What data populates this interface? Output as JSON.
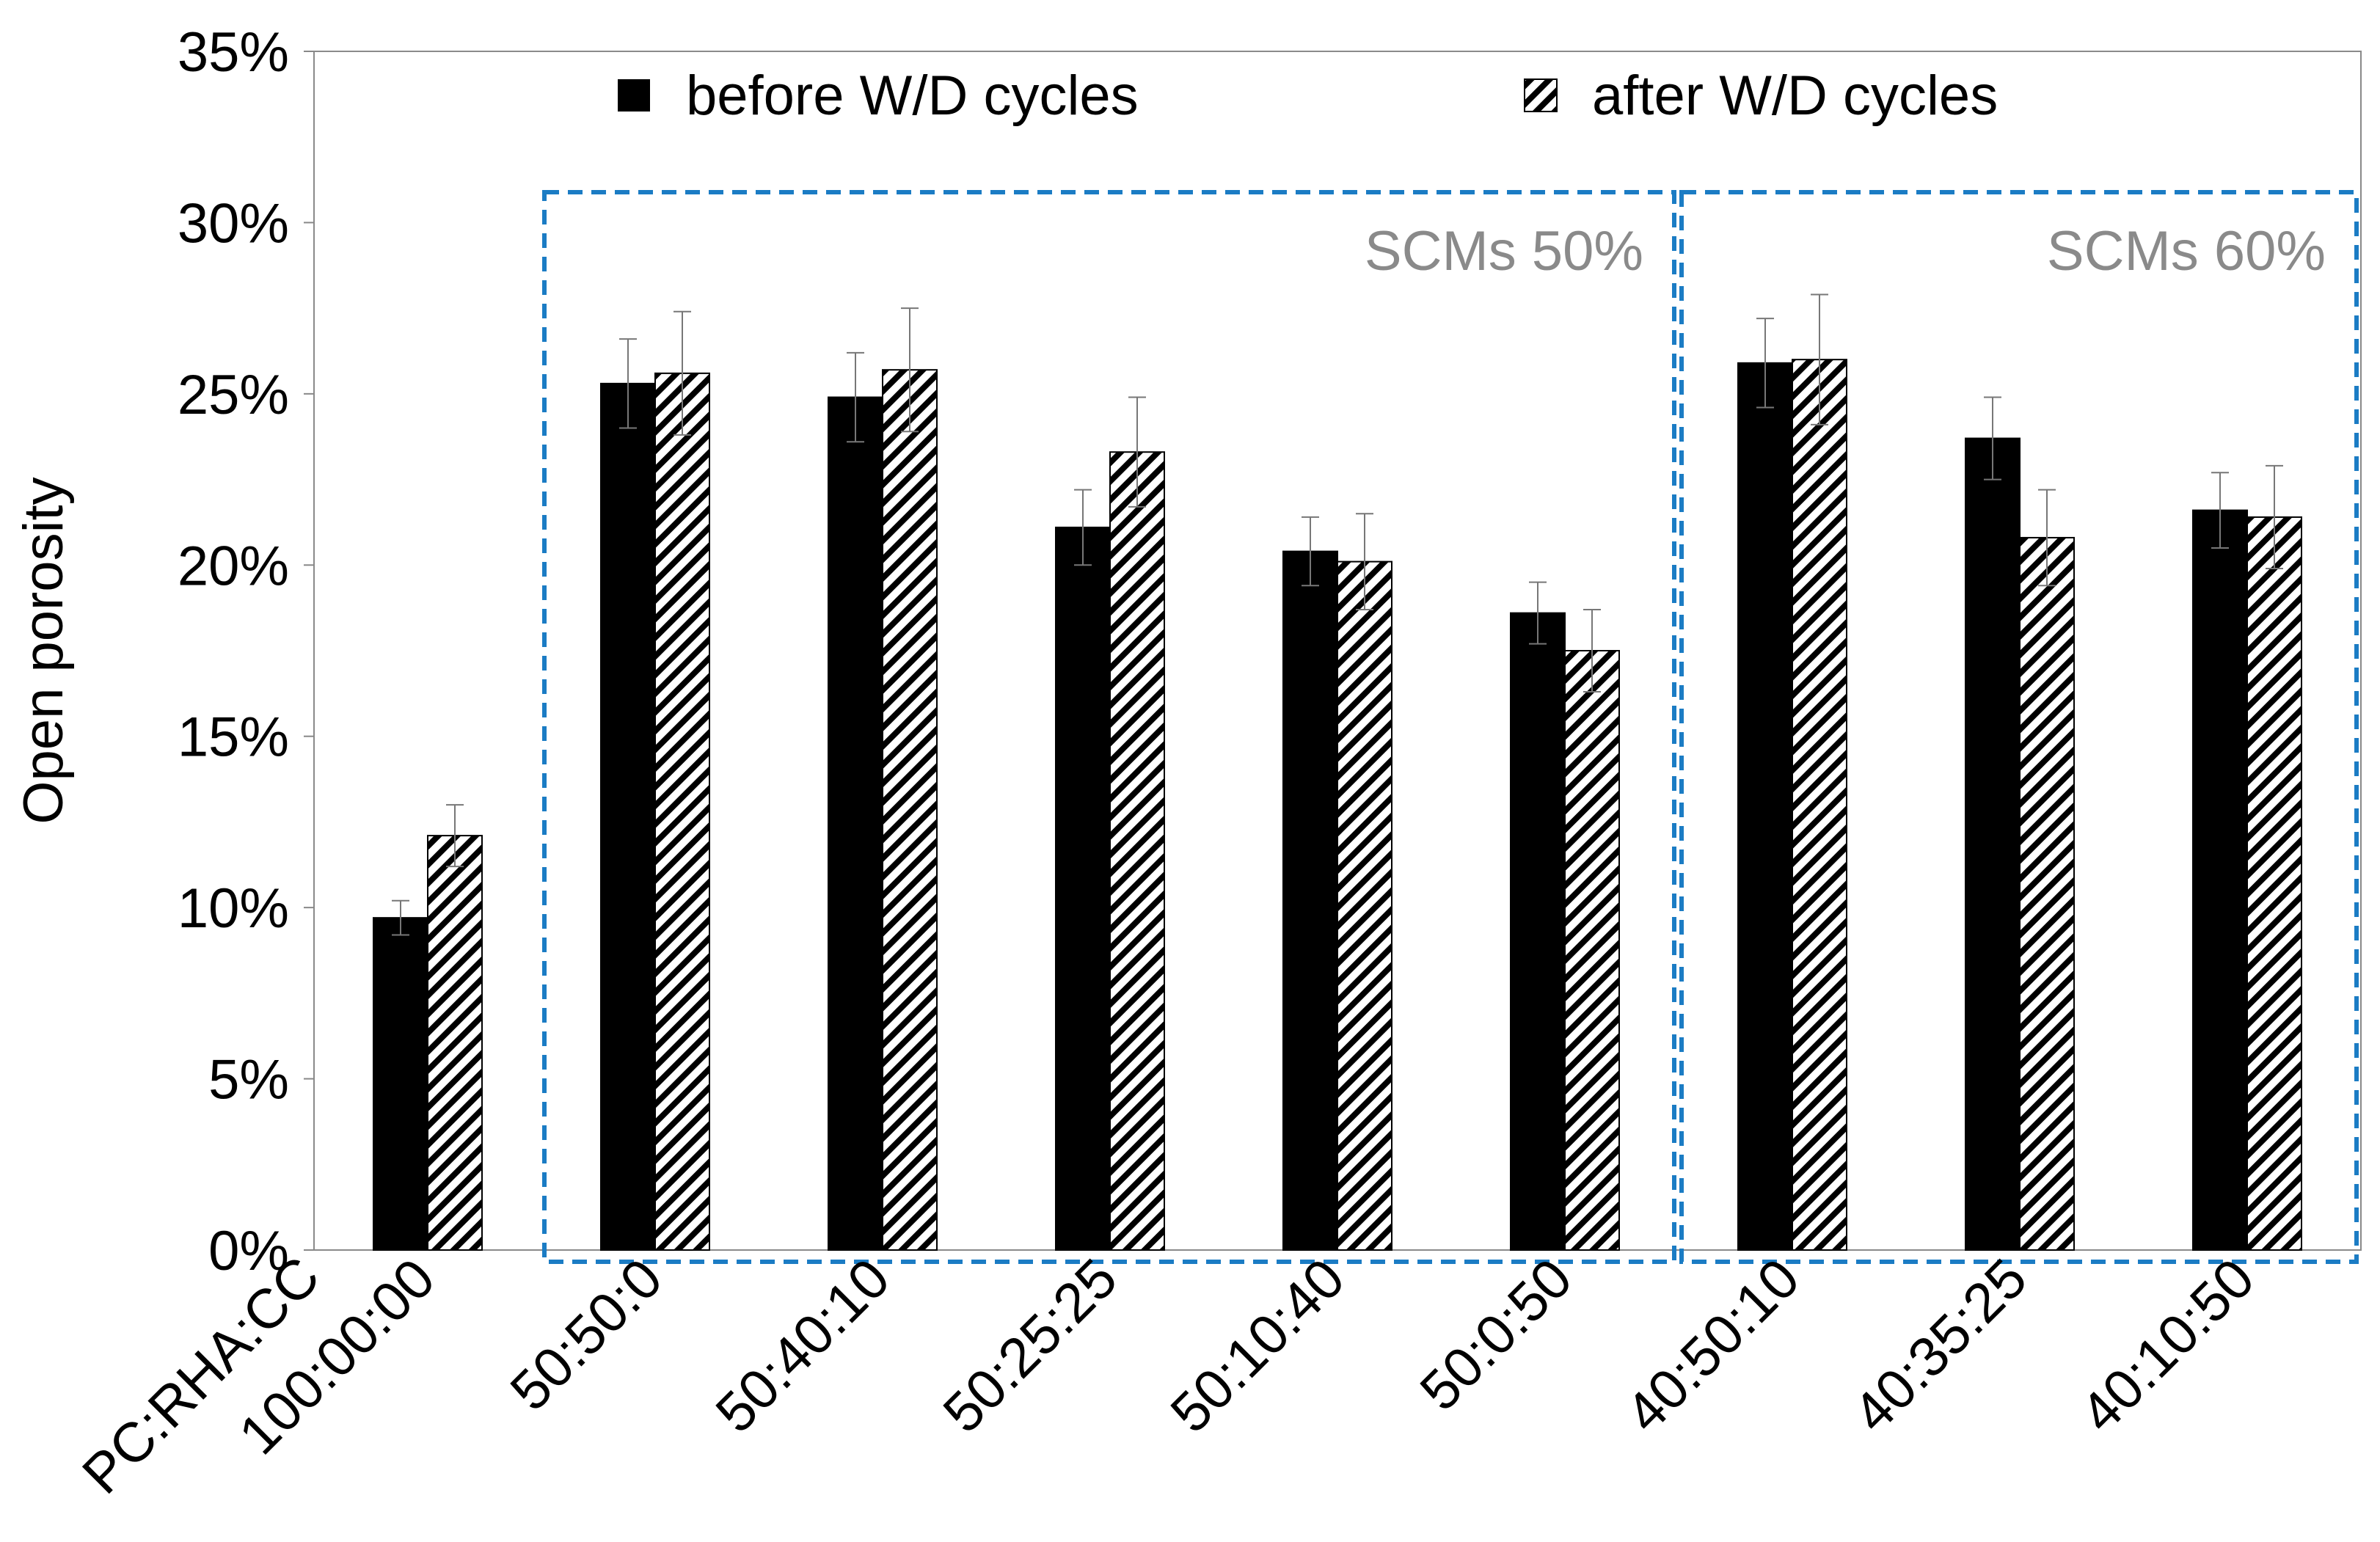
{
  "chart_data": {
    "type": "bar",
    "title": "",
    "xlabel": "PC:RHA:CC",
    "ylabel": "Open porosity",
    "ylim": [
      0,
      35
    ],
    "yticks": [
      "0%",
      "5%",
      "10%",
      "15%",
      "20%",
      "25%",
      "30%",
      "35%"
    ],
    "categories": [
      "100:00:00",
      "50:50:0",
      "50:40:10",
      "50:25:25",
      "50:10:40",
      "50:0:50",
      "40:50:10",
      "40:35:25",
      "40:10:50"
    ],
    "series": [
      {
        "name": "before W/D cycles",
        "style": "solid",
        "values": [
          9.7,
          25.3,
          24.9,
          21.1,
          20.4,
          18.6,
          25.9,
          23.7,
          21.6
        ],
        "errors": [
          0.5,
          1.3,
          1.3,
          1.1,
          1.0,
          0.9,
          1.3,
          1.2,
          1.1
        ]
      },
      {
        "name": "after W/D cycles",
        "style": "hatched",
        "values": [
          12.1,
          25.6,
          25.7,
          23.3,
          20.1,
          17.5,
          26.0,
          20.8,
          21.4
        ],
        "errors": [
          0.9,
          1.8,
          1.8,
          1.6,
          1.4,
          1.2,
          1.9,
          1.4,
          1.5
        ]
      }
    ],
    "groups": [
      {
        "label": "SCMs 50%",
        "start_category": 1,
        "end_category": 5
      },
      {
        "label": "SCMs 60%",
        "start_category": 6,
        "end_category": 8
      }
    ],
    "legend": "top",
    "grid": false
  },
  "colors": {
    "bar": "#000000",
    "group_box": "#1b7cc4",
    "group_label": "#8a8a8a",
    "axis": "#888888",
    "error_bar": "#777777"
  }
}
